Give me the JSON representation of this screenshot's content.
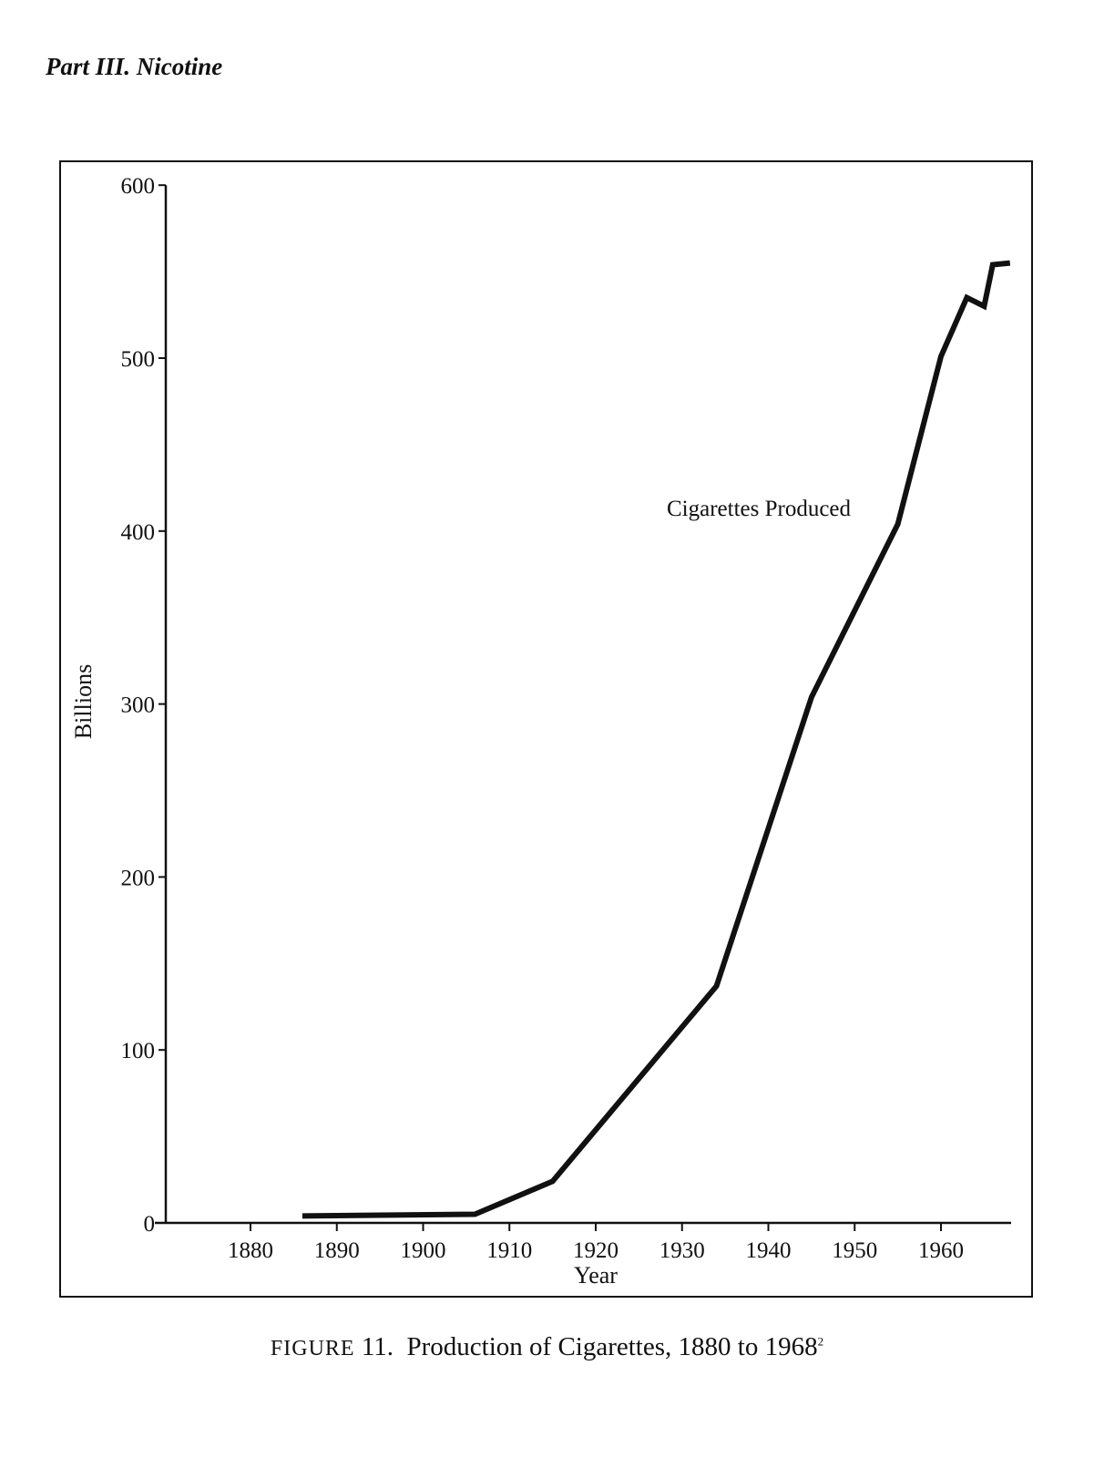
{
  "header": {
    "running_head": "Part III. Nicotine"
  },
  "caption": {
    "label": "FIGURE",
    "number": "11.",
    "text": "Production of Cigarettes, 1880 to 1968",
    "footnote": "2"
  },
  "chart_data": {
    "type": "line",
    "title": "Production of Cigarettes, 1880 to 1968",
    "xlabel": "Year",
    "ylabel": "Billions",
    "xlim": [
      1870,
      1968
    ],
    "ylim": [
      0,
      600
    ],
    "xticks": [
      1880,
      1890,
      1900,
      1910,
      1920,
      1930,
      1940,
      1950,
      1960
    ],
    "yticks": [
      0,
      100,
      200,
      300,
      400,
      500,
      600
    ],
    "grid": false,
    "series": [
      {
        "name": "Cigarettes Produced",
        "x": [
          1886,
          1906,
          1915,
          1934,
          1945,
          1955,
          1960,
          1963,
          1965,
          1966,
          1968
        ],
        "values": [
          4,
          5,
          24,
          137,
          304,
          404,
          501,
          535,
          530,
          554,
          555
        ]
      }
    ],
    "annotations": [
      {
        "text": "Cigarettes Produced",
        "near_x": 1945,
        "near_y": 410
      }
    ],
    "color": "#111111"
  }
}
